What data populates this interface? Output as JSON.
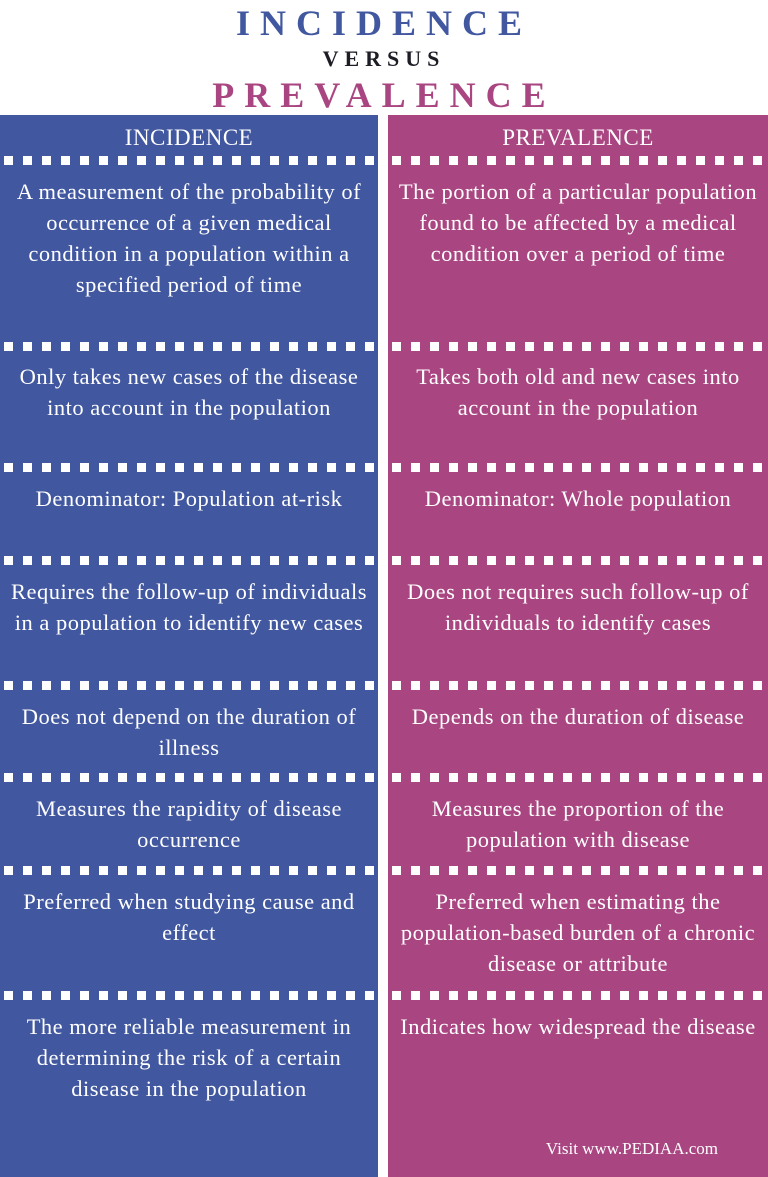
{
  "title": {
    "line1": "INCIDENCE",
    "line2": "VERSUS",
    "line3": "PREVALENCE"
  },
  "colors": {
    "incidence": "#41579f",
    "prevalence": "#a94681"
  },
  "headers": {
    "left": "INCIDENCE",
    "right": "PREVALENCE"
  },
  "rows": [
    {
      "left": "A measurement of the probability of occurrence of a given medical condition in a population within a specified period of time",
      "right": "The portion of a particular population found to be affected by a medical condition over a period of time"
    },
    {
      "left": "Only takes new cases of the disease into account in the population",
      "right": "Takes both old and new cases into account in the population"
    },
    {
      "left": "Denominator: Population at-risk",
      "right": "Denominator: Whole population"
    },
    {
      "left": "Requires the follow-up of individuals in a population to identify new cases",
      "right": "Does not requires such follow-up of individuals to identify cases"
    },
    {
      "left": "Does not depend on the duration of illness",
      "right": "Depends on the duration of disease"
    },
    {
      "left": "Measures the rapidity of disease occurrence",
      "right": "Measures the proportion of the population with disease"
    },
    {
      "left": "Preferred when studying cause and effect",
      "right": "Preferred when estimating the population-based burden of a chronic disease or attribute"
    },
    {
      "left": "The more reliable measurement in determining the risk of a certain disease in the population",
      "right": "Indicates how widespread the disease"
    }
  ],
  "credit": "Visit www.PEDIAA.com"
}
